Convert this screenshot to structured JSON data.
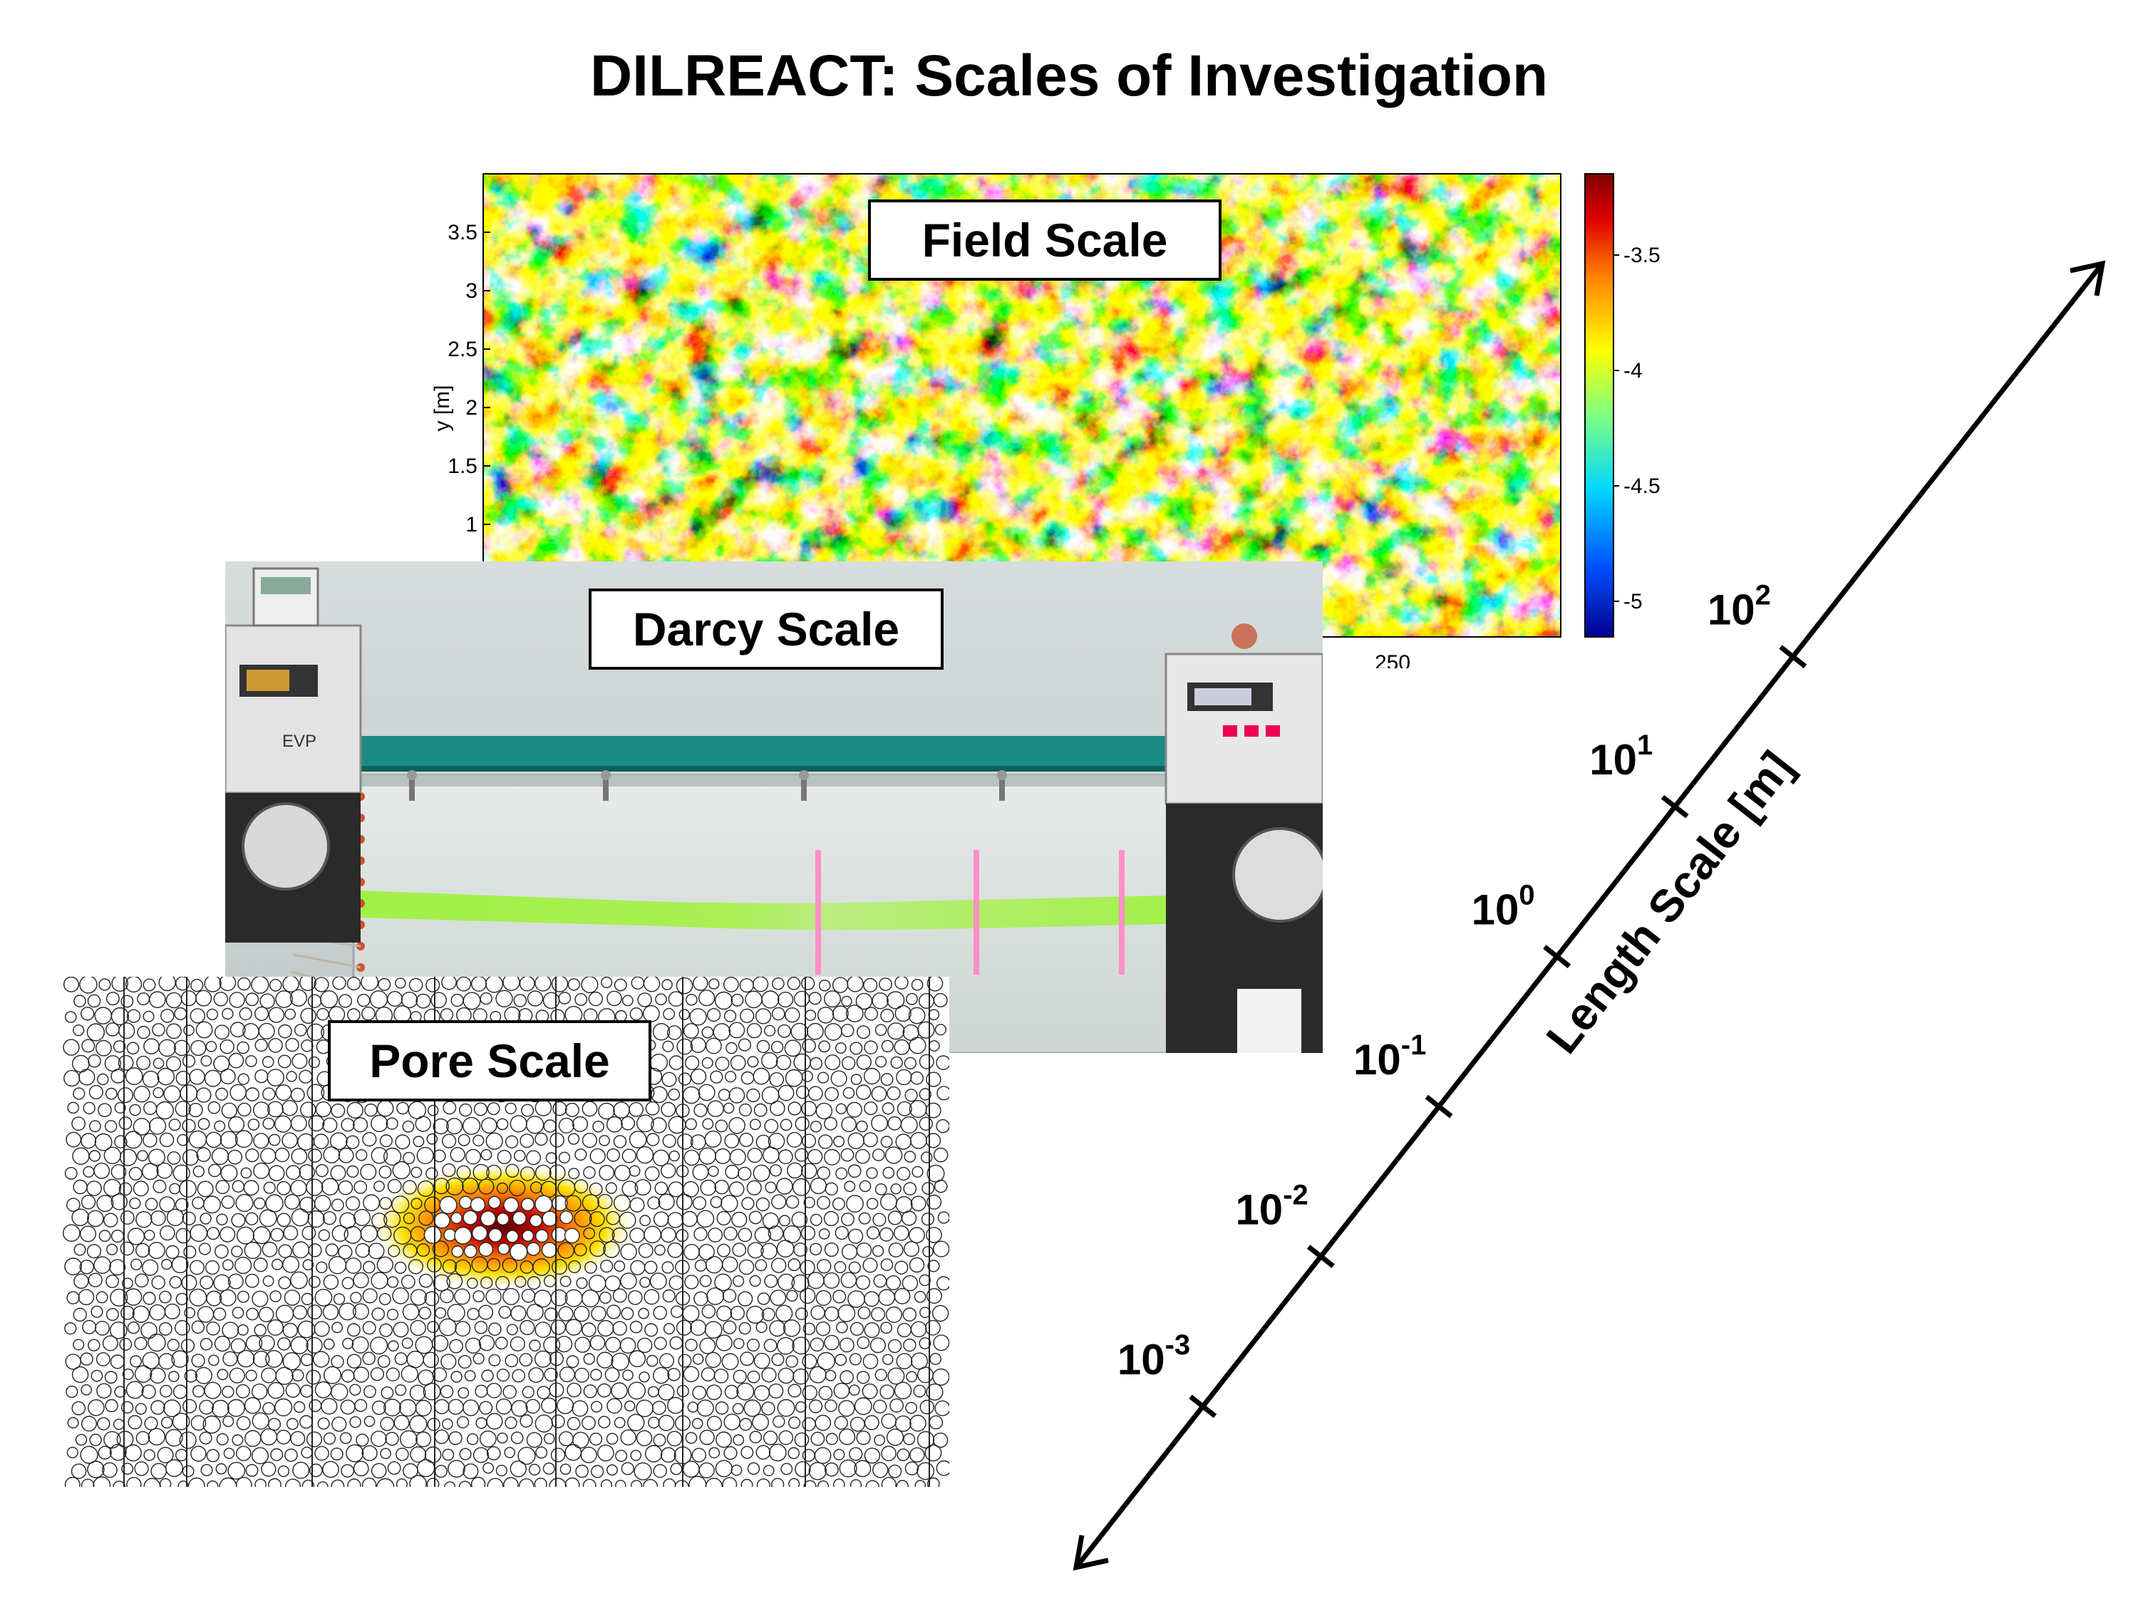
{
  "title": "DILREACT: Scales of Investigation",
  "panels": {
    "field": {
      "label": "Field Scale",
      "y_axis_label": "y [m]",
      "y_ticks": [
        "3.5",
        "3",
        "2.5",
        "2",
        "1.5",
        "1"
      ],
      "x_ticks_visible": [
        "250"
      ],
      "colorbar_ticks": [
        "-3.5",
        "-4",
        "-4.5",
        "-5"
      ]
    },
    "darcy": {
      "label": "Darcy Scale",
      "device_text": "EVP"
    },
    "pore": {
      "label": "Pore Scale"
    }
  },
  "length_axis": {
    "title": "Length Scale [m]",
    "ticks": [
      {
        "base": "10",
        "exp": "-3"
      },
      {
        "base": "10",
        "exp": "-2"
      },
      {
        "base": "10",
        "exp": "-1"
      },
      {
        "base": "10",
        "exp": "0"
      },
      {
        "base": "10",
        "exp": "1"
      },
      {
        "base": "10",
        "exp": "2"
      }
    ]
  },
  "colors": {
    "colormap": [
      "#00008f",
      "#0050ff",
      "#00d0ff",
      "#7fff7f",
      "#ffff00",
      "#ff8000",
      "#e00000",
      "#800000"
    ],
    "tracer_green": "#9cf23a",
    "marker_pink": "#ff8fc8",
    "tank_frame": "#1a8a84"
  }
}
